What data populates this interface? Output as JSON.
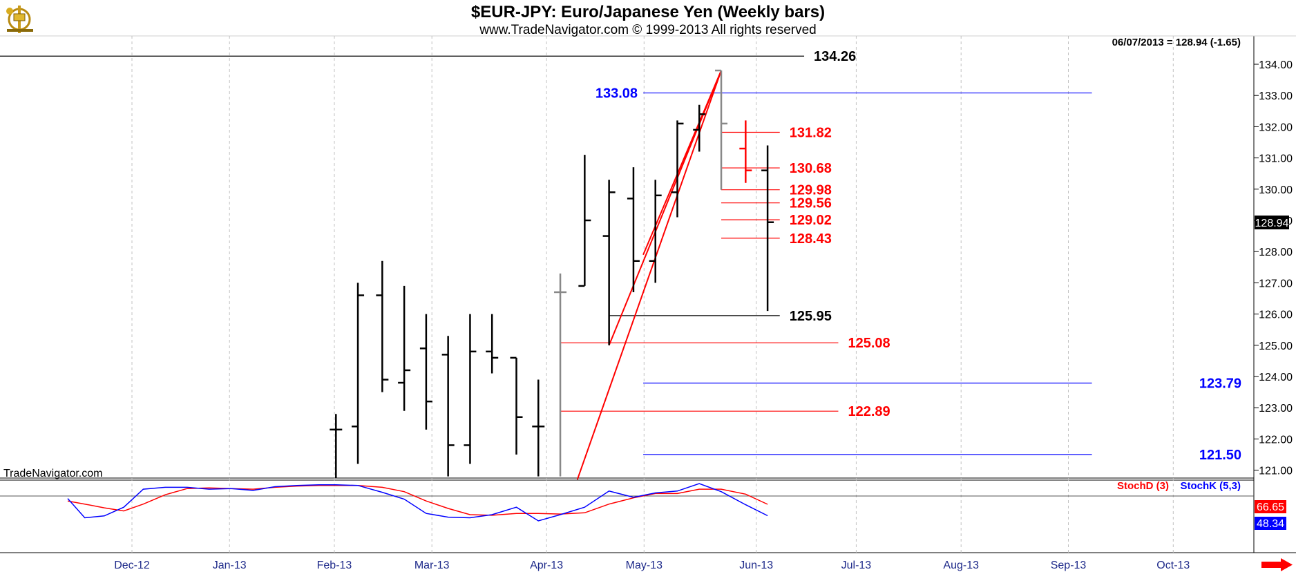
{
  "header": {
    "title": "$EUR-JPY:  Euro/Japanese Yen  (Weekly bars)",
    "copyright": "www.TradeNavigator.com © 1999-2013 All rights reserved",
    "last_quote": "06/07/2013 = 128.94 (-1.65)",
    "watermark": "TradeNavigator.com"
  },
  "chart_data": {
    "type": "ohlc",
    "price_axis": {
      "min": 120.7,
      "max": 134.45,
      "ticks": [
        "121.00",
        "122.00",
        "123.00",
        "124.00",
        "125.00",
        "126.00",
        "127.00",
        "128.00",
        "129.00",
        "130.00",
        "131.00",
        "132.00",
        "133.00",
        "134.00"
      ],
      "last_price_label": "128.94"
    },
    "time_axis": {
      "labels": [
        "Dec-12",
        "Jan-13",
        "Feb-13",
        "Mar-13",
        "Apr-13",
        "May-13",
        "Jun-13",
        "Jul-13",
        "Aug-13",
        "Sep-13",
        "Oct-13"
      ],
      "label_week_index": [
        0,
        4,
        8.3,
        12.3,
        17,
        21,
        25.6,
        29.7,
        34,
        38.4,
        42.7
      ]
    },
    "bars": [
      {
        "w": 7.6,
        "o": 122.3,
        "h": 122.8,
        "l": 120.7,
        "c": 122.3
      },
      {
        "w": 8.5,
        "o": 122.4,
        "h": 127.0,
        "l": 121.2,
        "c": 126.6
      },
      {
        "w": 9.5,
        "o": 126.6,
        "h": 127.7,
        "l": 123.5,
        "c": 123.9
      },
      {
        "w": 10.4,
        "o": 123.8,
        "h": 126.9,
        "l": 122.9,
        "c": 124.2
      },
      {
        "w": 11.3,
        "o": 124.9,
        "h": 126.0,
        "l": 122.3,
        "c": 123.2
      },
      {
        "w": 12.2,
        "o": 124.7,
        "h": 125.3,
        "l": 120.8,
        "c": 121.8
      },
      {
        "w": 13.1,
        "o": 121.8,
        "h": 126.0,
        "l": 121.2,
        "c": 124.8
      },
      {
        "w": 14.0,
        "o": 124.8,
        "h": 126.0,
        "l": 124.1,
        "c": 124.6
      },
      {
        "w": 15.0,
        "o": 124.6,
        "h": 124.6,
        "l": 121.5,
        "c": 122.7
      },
      {
        "w": 15.9,
        "o": 122.4,
        "h": 123.9,
        "l": 120.8,
        "c": 122.4
      },
      {
        "w": 16.8,
        "o": 126.7,
        "h": 127.3,
        "l": 120.8,
        "c": 126.7,
        "gray": true
      },
      {
        "w": 17.8,
        "o": 126.9,
        "h": 131.1,
        "l": 126.9,
        "c": 129.0
      },
      {
        "w": 18.8,
        "o": 128.5,
        "h": 130.3,
        "l": 125.0,
        "c": 129.9
      },
      {
        "w": 19.8,
        "o": 129.7,
        "h": 130.7,
        "l": 126.7,
        "c": 127.7
      },
      {
        "w": 20.7,
        "o": 127.7,
        "h": 130.3,
        "l": 127.0,
        "c": 129.8
      },
      {
        "w": 21.6,
        "o": 129.9,
        "h": 132.2,
        "l": 129.1,
        "c": 132.1
      },
      {
        "w": 22.5,
        "o": 131.9,
        "h": 132.7,
        "l": 131.2,
        "c": 132.4
      },
      {
        "w": 23.4,
        "o": 133.8,
        "h": 133.8,
        "l": 129.98,
        "c": 132.1,
        "gray": true
      },
      {
        "w": 24.4,
        "o": 131.3,
        "h": 132.2,
        "l": 130.2,
        "c": 130.6,
        "red": true
      },
      {
        "w": 25.3,
        "o": 130.6,
        "h": 131.4,
        "l": 126.1,
        "c": 128.94
      }
    ],
    "annotations": {
      "horizontal_levels": [
        {
          "value": 134.26,
          "label": "134.26",
          "color": "#000000",
          "from_w": -7,
          "to_w": 26.8
        },
        {
          "value": 133.08,
          "label": "133.08",
          "color": "#0000ff",
          "from_w": 20.2,
          "to_w": 38.6
        },
        {
          "value": 131.82,
          "label": "131.82",
          "color": "#ff0000",
          "from_w": 23.4,
          "to_w": 25.8
        },
        {
          "value": 130.68,
          "label": "130.68",
          "color": "#ff0000",
          "from_w": 23.4,
          "to_w": 25.8
        },
        {
          "value": 129.98,
          "label": "129.98",
          "color": "#ff0000",
          "from_w": 23.4,
          "to_w": 25.8
        },
        {
          "value": 129.56,
          "label": "129.56",
          "color": "#ff0000",
          "from_w": 23.4,
          "to_w": 25.8
        },
        {
          "value": 129.02,
          "label": "129.02",
          "color": "#ff0000",
          "from_w": 23.4,
          "to_w": 25.8
        },
        {
          "value": 128.43,
          "label": "128.43",
          "color": "#ff0000",
          "from_w": 23.4,
          "to_w": 25.8
        },
        {
          "value": 125.95,
          "label": "125.95",
          "color": "#000000",
          "from_w": 18.8,
          "to_w": 25.8
        },
        {
          "value": 125.08,
          "label": "125.08",
          "color": "#ff0000",
          "from_w": 16.8,
          "to_w": 28.2
        },
        {
          "value": 123.79,
          "label": "123.79",
          "color": "#0000ff",
          "from_w": 20.2,
          "to_w": 38.6
        },
        {
          "value": 122.89,
          "label": "122.89",
          "color": "#ff0000",
          "from_w": 16.8,
          "to_w": 28.2
        },
        {
          "value": 121.5,
          "label": "121.50",
          "color": "#0000ff",
          "from_w": 20.2,
          "to_w": 38.6
        }
      ],
      "trendlines": [
        {
          "x1_w": 18.8,
          "y1": 125.0,
          "x2_w": 23.4,
          "y2": 133.8
        },
        {
          "x1_w": 17.5,
          "y1": 120.7,
          "x2_w": 23.4,
          "y2": 133.8
        },
        {
          "x1_w": 20.2,
          "y1": 127.9,
          "x2_w": 23.4,
          "y2": 133.8
        }
      ]
    },
    "indicator": {
      "name": "Stochastic",
      "legend": [
        "StochD (3)",
        "StochK (5,3)"
      ],
      "range": [
        0,
        100
      ],
      "reference_level": 80,
      "stoch_k": [
        [
          -3.4,
          76
        ],
        [
          -2.7,
          45
        ],
        [
          -1.9,
          48
        ],
        [
          -1.1,
          62
        ],
        [
          -0.3,
          91
        ],
        [
          0.6,
          94
        ],
        [
          1.5,
          94
        ],
        [
          2.4,
          91
        ],
        [
          3.3,
          92
        ],
        [
          4.2,
          89
        ],
        [
          5.1,
          95
        ],
        [
          6.0,
          97
        ],
        [
          6.9,
          98
        ],
        [
          7.6,
          98
        ],
        [
          8.5,
          97
        ],
        [
          9.5,
          86
        ],
        [
          10.4,
          75
        ],
        [
          11.3,
          52
        ],
        [
          12.2,
          46
        ],
        [
          13.1,
          45
        ],
        [
          14.0,
          50
        ],
        [
          15.0,
          62
        ],
        [
          15.9,
          40
        ],
        [
          16.8,
          50
        ],
        [
          17.8,
          62
        ],
        [
          18.8,
          88
        ],
        [
          19.8,
          78
        ],
        [
          20.7,
          85
        ],
        [
          21.6,
          88
        ],
        [
          22.5,
          100
        ],
        [
          23.4,
          87
        ],
        [
          24.4,
          66
        ],
        [
          25.3,
          48.34
        ]
      ],
      "stoch_d": [
        [
          -3.4,
          72
        ],
        [
          -2.7,
          67
        ],
        [
          -1.9,
          61
        ],
        [
          -1.1,
          56
        ],
        [
          -0.3,
          67
        ],
        [
          0.6,
          82
        ],
        [
          1.5,
          92
        ],
        [
          2.4,
          93
        ],
        [
          3.3,
          92
        ],
        [
          4.2,
          91
        ],
        [
          5.1,
          94
        ],
        [
          6.0,
          96
        ],
        [
          6.9,
          97
        ],
        [
          7.6,
          97
        ],
        [
          8.5,
          97
        ],
        [
          9.5,
          94
        ],
        [
          10.4,
          87
        ],
        [
          11.3,
          72
        ],
        [
          12.2,
          60
        ],
        [
          13.1,
          50
        ],
        [
          14.0,
          49
        ],
        [
          15.0,
          52
        ],
        [
          15.9,
          52
        ],
        [
          16.8,
          51
        ],
        [
          17.8,
          53
        ],
        [
          18.8,
          67
        ],
        [
          19.8,
          77
        ],
        [
          20.7,
          84
        ],
        [
          21.6,
          84
        ],
        [
          22.5,
          91
        ],
        [
          23.4,
          91
        ],
        [
          24.4,
          83
        ],
        [
          25.3,
          66.65
        ]
      ],
      "last_d_label": "66.65",
      "last_k_label": "48.34"
    }
  },
  "colors": {
    "bar": "#000000",
    "bar_gray": "#888888",
    "bar_red": "#ff0000",
    "stoch_k": "#0000ff",
    "stoch_d": "#ff0000",
    "grid": "#c0c0c0",
    "header_bg": "#ffffff",
    "arrow": "#ff0000"
  },
  "icons": {
    "logo": "sextant-logo-icon",
    "scroll": "right-arrow-icon"
  }
}
